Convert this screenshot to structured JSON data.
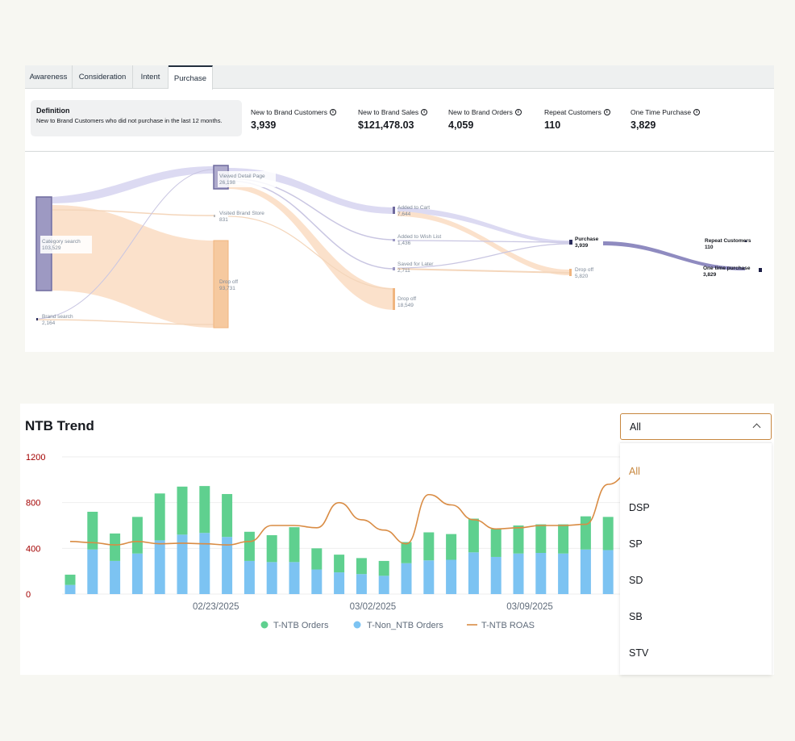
{
  "tabs": [
    {
      "label": "Awareness",
      "active": false
    },
    {
      "label": "Consideration",
      "active": false
    },
    {
      "label": "Intent",
      "active": false
    },
    {
      "label": "Purchase",
      "active": true
    }
  ],
  "definition": {
    "title": "Definition",
    "text": "New to Brand Customers who did not purchase in the last 12 months."
  },
  "metrics": [
    {
      "label": "New to Brand Customers",
      "value": "3,939"
    },
    {
      "label": "New to Brand Sales",
      "value": "$121,478.03"
    },
    {
      "label": "New to Brand Orders",
      "value": "4,059"
    },
    {
      "label": "Repeat Customers",
      "value": "110"
    },
    {
      "label": "One Time Purchase",
      "value": "3,829"
    }
  ],
  "info_icon": "info-icon",
  "sankey": {
    "nodes": [
      {
        "id": "category_search",
        "name": "Category search",
        "value": "103,529"
      },
      {
        "id": "brand_search",
        "name": "Brand search",
        "value": "2,164"
      },
      {
        "id": "viewed_detail",
        "name": "Viewed Detail Page",
        "value": "26,198"
      },
      {
        "id": "visited_store",
        "name": "Visited Brand Store",
        "value": "831"
      },
      {
        "id": "drop_off_1",
        "name": "Drop off",
        "value": "93,731"
      },
      {
        "id": "added_to_cart",
        "name": "Added to Cart",
        "value": "7,644"
      },
      {
        "id": "added_to_wish",
        "name": "Added to Wish List",
        "value": "1,436"
      },
      {
        "id": "saved_for_later",
        "name": "Saved for Later",
        "value": "2,711"
      },
      {
        "id": "drop_off_2",
        "name": "Drop off",
        "value": "18,549"
      },
      {
        "id": "purchase",
        "name": "Purchase",
        "value": "3,939"
      },
      {
        "id": "drop_off_3",
        "name": "Drop off",
        "value": "5,820"
      },
      {
        "id": "repeat_customers",
        "name": "Repeat Customers",
        "value": "110"
      },
      {
        "id": "one_time_purchase",
        "name": "One time purchase",
        "value": "3,829"
      }
    ],
    "colors": {
      "primary": "#7b77a8",
      "primary_light": "#dcdaf2",
      "dropoff": "#f0b57f",
      "dropoff_light": "#fbe1cb"
    }
  },
  "trend": {
    "title": "NTB Trend",
    "select": {
      "value": "All",
      "chevron_icon": "chevron-up-icon"
    },
    "menu_options": [
      {
        "label": "All",
        "selected": true
      },
      {
        "label": "DSP",
        "selected": false
      },
      {
        "label": "SP",
        "selected": false
      },
      {
        "label": "SD",
        "selected": false
      },
      {
        "label": "SB",
        "selected": false
      },
      {
        "label": "STV",
        "selected": false
      }
    ],
    "legend": [
      {
        "label": "T-NTB Orders",
        "color": "#5fd08f"
      },
      {
        "label": "T-Non_NTB Orders",
        "color": "#7cc3f2"
      },
      {
        "label": "T-NTB ROAS",
        "color": "#d98c44"
      }
    ]
  },
  "chart_data": {
    "type": "bar",
    "title": "NTB Trend",
    "xlabel": "",
    "ylabel": "",
    "ylim": [
      0,
      1200
    ],
    "yticks": [
      "0",
      "400",
      "800",
      "1200"
    ],
    "x_tick_labels": [
      {
        "index": 6,
        "label": "02/23/2025"
      },
      {
        "index": 13,
        "label": "03/02/2025"
      },
      {
        "index": 20,
        "label": "03/09/2025"
      }
    ],
    "stacked": true,
    "grid": true,
    "legend_position": "bottom",
    "categories": [
      "2025-02-17",
      "2025-02-18",
      "2025-02-19",
      "2025-02-20",
      "2025-02-21",
      "2025-02-22",
      "2025-02-23",
      "2025-02-24",
      "2025-02-25",
      "2025-02-26",
      "2025-02-27",
      "2025-02-28",
      "2025-03-01",
      "2025-03-02",
      "2025-03-03",
      "2025-03-04",
      "2025-03-05",
      "2025-03-06",
      "2025-03-07",
      "2025-03-08",
      "2025-03-09",
      "2025-03-10",
      "2025-03-11",
      "2025-03-12",
      "2025-03-13",
      "2025-03-14"
    ],
    "series": [
      {
        "name": "T-Non_NTB Orders",
        "type": "bar",
        "values": [
          80,
          390,
          290,
          355,
          470,
          520,
          535,
          500,
          290,
          280,
          280,
          215,
          190,
          175,
          160,
          270,
          295,
          300,
          365,
          325,
          355,
          360,
          355,
          390,
          385,
          380
        ]
      },
      {
        "name": "T-NTB Orders",
        "type": "bar",
        "values": [
          90,
          330,
          240,
          320,
          410,
          420,
          410,
          375,
          255,
          235,
          305,
          185,
          155,
          140,
          130,
          185,
          245,
          225,
          295,
          245,
          245,
          250,
          255,
          290,
          290,
          300
        ]
      },
      {
        "name": "T-NTB ROAS",
        "type": "line",
        "values": [
          460,
          450,
          430,
          460,
          440,
          445,
          440,
          430,
          460,
          600,
          600,
          580,
          800,
          650,
          560,
          440,
          870,
          780,
          650,
          570,
          580,
          600,
          600,
          610,
          960,
          1060
        ]
      }
    ]
  }
}
